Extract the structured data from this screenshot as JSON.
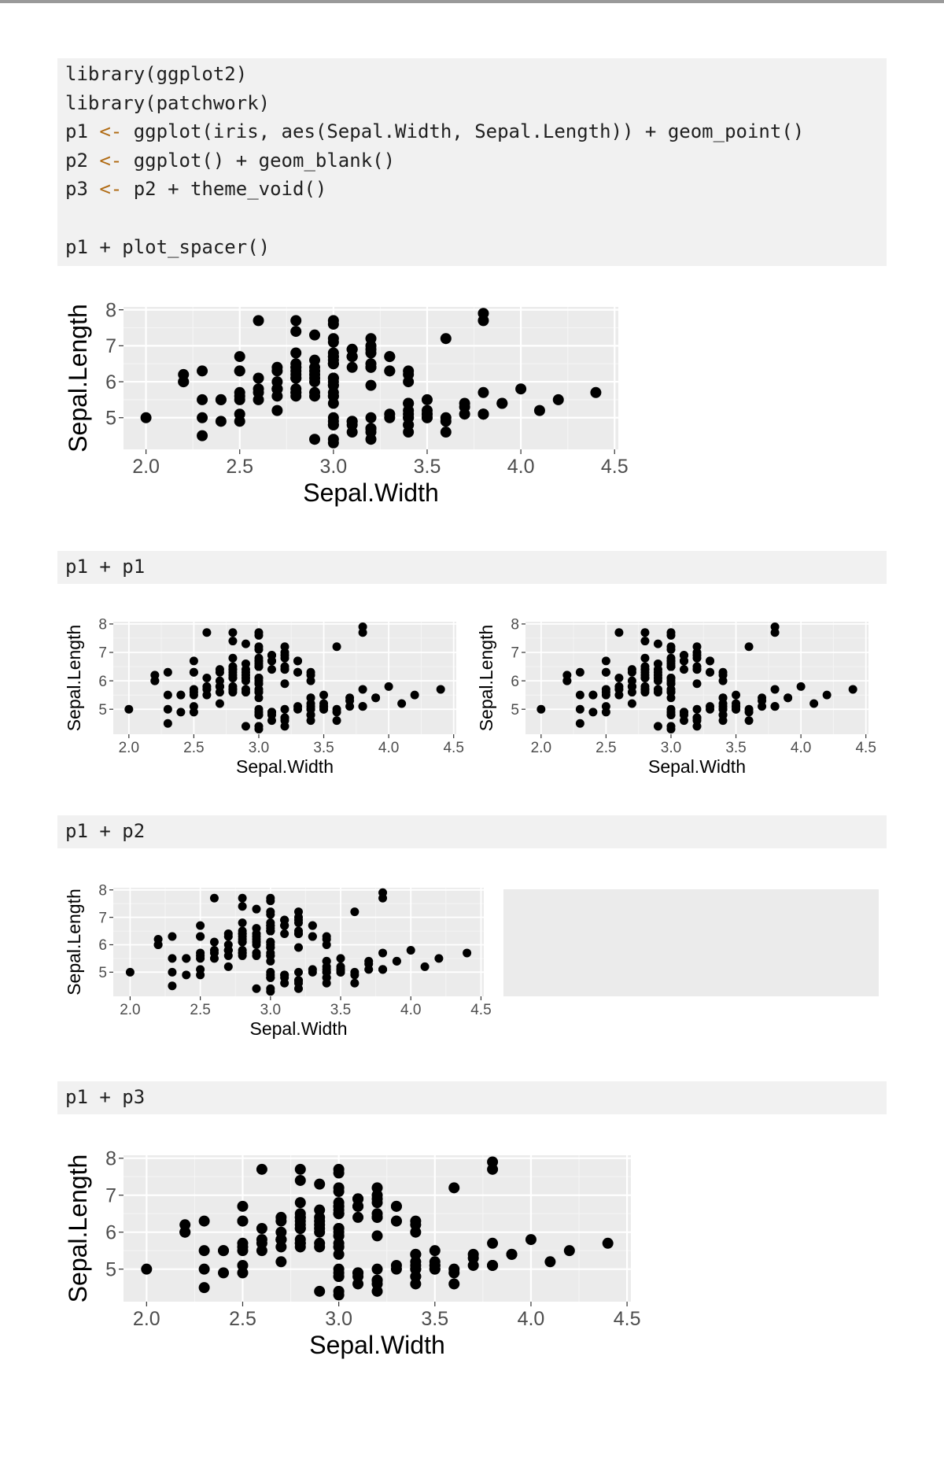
{
  "code_blocks": [
    {
      "lines": [
        [
          {
            "t": "library(ggplot2)"
          }
        ],
        [
          {
            "t": "library(patchwork)"
          }
        ],
        [
          {
            "t": "p1 "
          },
          {
            "t": "<-",
            "op": true
          },
          {
            "t": " ggplot(iris, aes(Sepal.Width, Sepal.Length)) + geom_point()"
          }
        ],
        [
          {
            "t": "p2 "
          },
          {
            "t": "<-",
            "op": true
          },
          {
            "t": " ggplot() + geom_blank()"
          }
        ],
        [
          {
            "t": "p3 "
          },
          {
            "t": "<-",
            "op": true
          },
          {
            "t": " p2 + theme_void()"
          }
        ],
        [
          {
            "t": ""
          }
        ],
        [
          {
            "t": "p1 + plot_spacer()"
          }
        ]
      ]
    },
    {
      "lines": [
        [
          {
            "t": "p1 + p1"
          }
        ]
      ]
    },
    {
      "lines": [
        [
          {
            "t": "p1 + p2"
          }
        ]
      ]
    },
    {
      "lines": [
        [
          {
            "t": "p1 + p3"
          }
        ]
      ]
    }
  ],
  "colors": {
    "panel": "#ebebeb",
    "grid_major": "#ffffff",
    "grid_minor": "#f5f5f5",
    "point": "#000000",
    "axis_text": "#4d4d4d",
    "code_bg": "#f1f1f1",
    "operator": "#b06a12"
  },
  "chart_data": {
    "type": "scatter",
    "xlabel": "Sepal.Width",
    "ylabel": "Sepal.Length",
    "x_ticks": [
      "2.0",
      "2.5",
      "3.0",
      "3.5",
      "4.0",
      "4.5"
    ],
    "y_ticks": [
      "5",
      "6",
      "7",
      "8"
    ],
    "xlim": [
      1.88,
      4.52
    ],
    "ylim": [
      4.12,
      8.08
    ],
    "grid": true,
    "series": [
      {
        "x": [
          3.5,
          3.0,
          3.2,
          3.1,
          3.6,
          3.9,
          3.4,
          3.4,
          2.9,
          3.1,
          3.7,
          3.4,
          3.0,
          3.0,
          4.0,
          4.4,
          3.9,
          3.5,
          3.8,
          3.8,
          3.4,
          3.7,
          3.6,
          3.3,
          3.4,
          3.0,
          3.4,
          3.5,
          3.4,
          3.2,
          3.1,
          3.4,
          4.1,
          4.2,
          3.1,
          3.2,
          3.5,
          3.6,
          3.0,
          3.4,
          3.5,
          2.3,
          3.2,
          3.5,
          3.8,
          3.0,
          3.8,
          3.2,
          3.7,
          3.3,
          3.2,
          3.2,
          3.1,
          2.3,
          2.8,
          2.8,
          3.3,
          2.4,
          2.9,
          2.7,
          2.0,
          3.0,
          2.2,
          2.9,
          2.9,
          3.1,
          3.0,
          2.7,
          2.2,
          2.5,
          3.2,
          2.8,
          2.5,
          2.8,
          2.9,
          3.0,
          2.8,
          3.0,
          2.9,
          2.6,
          2.4,
          2.4,
          2.7,
          2.7,
          3.0,
          3.4,
          3.1,
          2.3,
          3.0,
          2.5,
          2.6,
          3.0,
          2.6,
          2.3,
          2.7,
          3.0,
          2.9,
          2.9,
          2.5,
          2.8,
          3.3,
          2.7,
          3.0,
          2.9,
          3.0,
          3.0,
          2.5,
          2.9,
          2.5,
          3.6,
          3.2,
          2.7,
          3.0,
          2.5,
          2.8,
          3.2,
          3.0,
          3.8,
          2.6,
          2.2,
          3.2,
          2.8,
          2.8,
          2.7,
          3.3,
          3.2,
          2.8,
          3.0,
          2.8,
          3.0,
          2.8,
          3.8,
          2.8,
          2.8,
          2.6,
          3.0,
          3.4,
          3.1,
          3.0,
          3.1,
          3.1,
          3.1,
          2.7,
          3.2,
          3.3,
          3.0,
          2.5,
          3.0,
          3.4,
          3.0
        ],
        "y": [
          5.1,
          4.9,
          4.7,
          4.6,
          5.0,
          5.4,
          4.6,
          5.0,
          4.4,
          4.9,
          5.4,
          4.8,
          4.8,
          4.3,
          5.8,
          5.7,
          5.4,
          5.1,
          5.7,
          5.1,
          5.4,
          5.1,
          4.6,
          5.1,
          4.8,
          5.0,
          5.0,
          5.2,
          5.2,
          4.7,
          4.8,
          5.4,
          5.2,
          5.5,
          4.9,
          5.0,
          5.5,
          4.9,
          4.4,
          5.1,
          5.0,
          4.5,
          4.4,
          5.0,
          5.1,
          4.8,
          5.1,
          4.6,
          5.3,
          5.0,
          7.0,
          6.4,
          6.9,
          5.5,
          6.5,
          5.7,
          6.3,
          4.9,
          6.6,
          5.2,
          5.0,
          5.9,
          6.0,
          6.1,
          5.6,
          6.7,
          5.6,
          5.8,
          6.2,
          5.6,
          5.9,
          6.1,
          6.3,
          6.1,
          6.4,
          6.6,
          6.8,
          6.7,
          6.0,
          5.7,
          5.5,
          5.5,
          5.8,
          6.0,
          5.4,
          6.0,
          6.7,
          6.3,
          5.6,
          5.5,
          5.5,
          6.1,
          5.8,
          5.0,
          5.6,
          5.7,
          5.7,
          6.2,
          5.1,
          5.7,
          6.3,
          5.8,
          7.1,
          6.3,
          6.5,
          7.6,
          4.9,
          7.3,
          6.7,
          7.2,
          6.5,
          6.4,
          6.8,
          5.7,
          5.8,
          6.4,
          6.5,
          7.7,
          7.7,
          6.0,
          6.9,
          5.6,
          7.7,
          6.3,
          6.7,
          7.2,
          6.2,
          6.1,
          6.4,
          7.2,
          7.4,
          7.9,
          6.4,
          6.3,
          6.1,
          7.7,
          6.3,
          6.4,
          6.0,
          6.9,
          6.7,
          6.9,
          5.8,
          6.8,
          6.7,
          6.7,
          6.3,
          6.5,
          6.2,
          5.9
        ]
      }
    ]
  }
}
